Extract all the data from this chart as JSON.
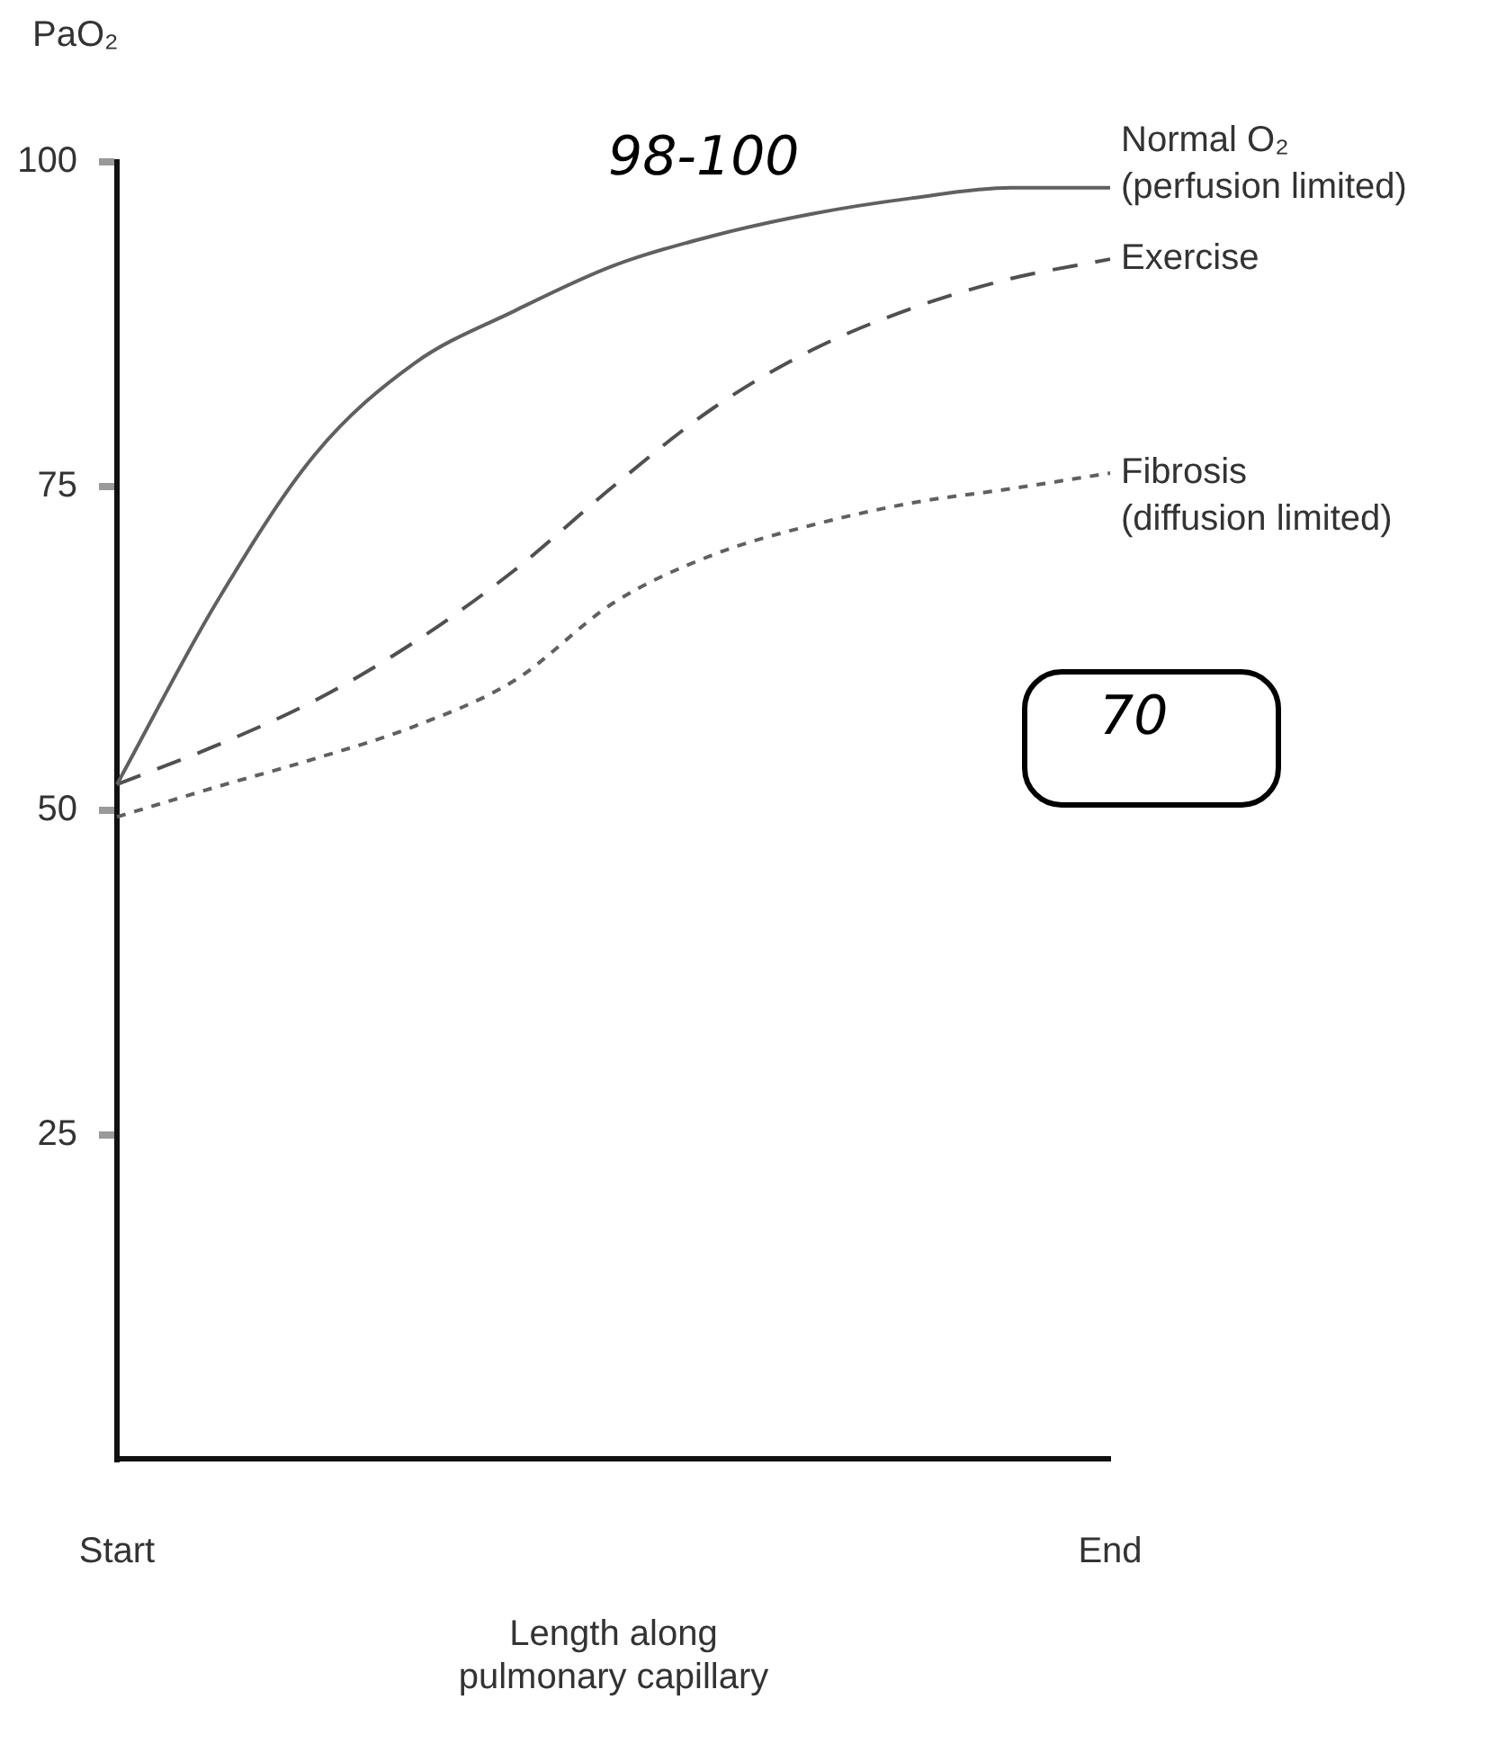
{
  "chart_data": {
    "type": "line",
    "ylabel": "PaO₂",
    "xlabel": "Length along\npulmonary capillary",
    "categories": [
      "Start",
      null,
      null,
      null,
      null,
      null,
      null,
      null,
      null,
      null,
      "End"
    ],
    "ylim": [
      0,
      100
    ],
    "yticks": [
      25,
      50,
      75,
      100
    ],
    "series": [
      {
        "name": "Normal O₂\n(perfusion limited)",
        "color": "#606060",
        "line_style": "solid",
        "values": [
          52,
          66,
          77.5,
          84.5,
          88.5,
          92,
          94.3,
          96,
          97.2,
          98,
          98
        ]
      },
      {
        "name": "Exercise",
        "color": "#505050",
        "line_style": "dashed",
        "values": [
          52,
          55,
          58.5,
          63,
          68.5,
          75,
          81,
          85.5,
          88.7,
          91,
          92.5
        ]
      },
      {
        "name": "Fibrosis\n(diffusion limited)",
        "color": "#606060",
        "line_style": "dotted",
        "values": [
          49.5,
          51.8,
          54,
          56.5,
          60,
          66,
          69.7,
          72,
          73.7,
          74.8,
          76
        ]
      }
    ],
    "annotations": [
      "98-100",
      "70"
    ]
  }
}
